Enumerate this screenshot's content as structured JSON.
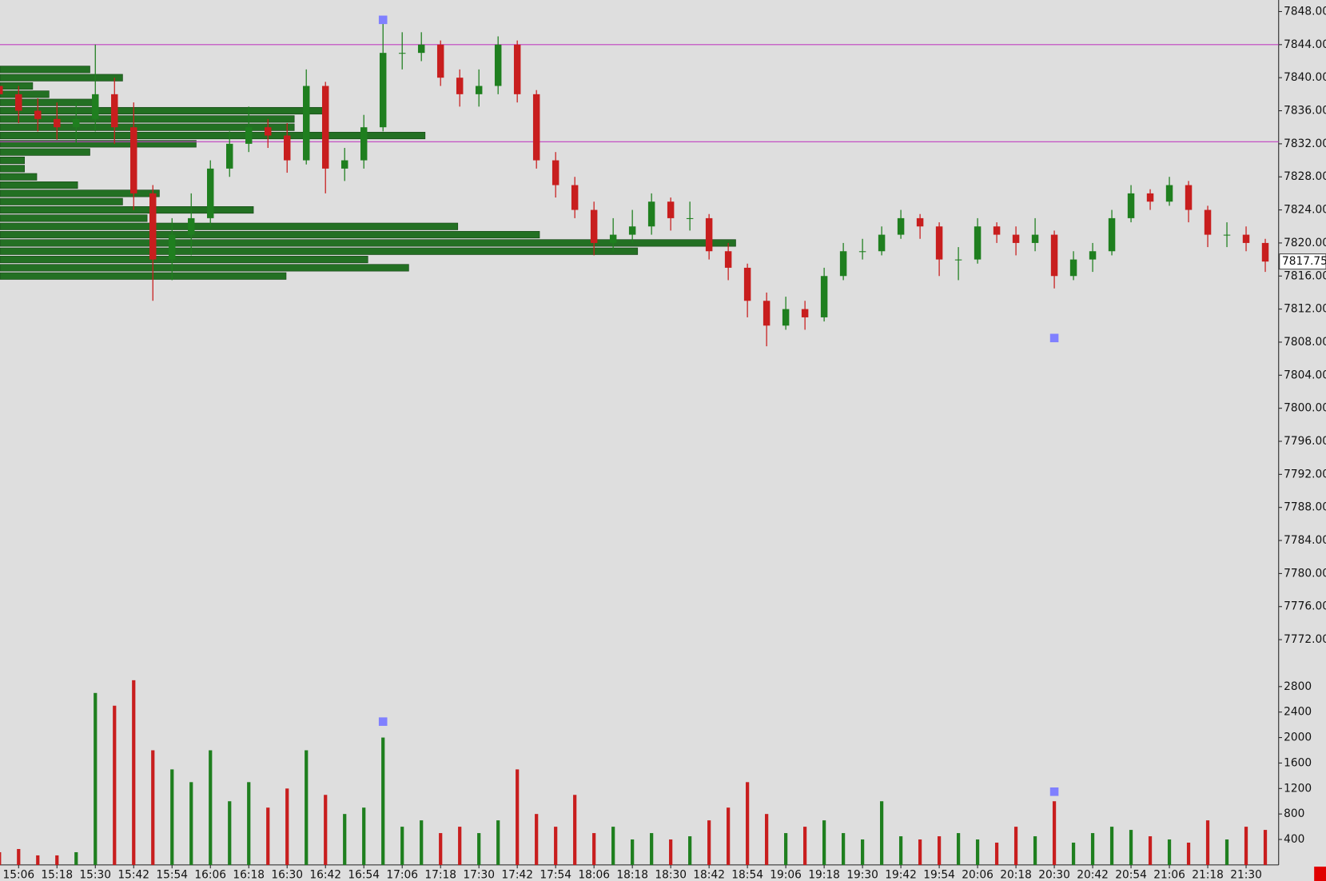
{
  "chart_data": {
    "type": "candlestick",
    "x": [
      "15:00",
      "15:06",
      "15:12",
      "15:18",
      "15:24",
      "15:30",
      "15:36",
      "15:42",
      "15:48",
      "15:54",
      "16:00",
      "16:06",
      "16:12",
      "16:18",
      "16:24",
      "16:30",
      "16:36",
      "16:42",
      "16:48",
      "16:54",
      "17:00",
      "17:06",
      "17:12",
      "17:18",
      "17:24",
      "17:30",
      "17:36",
      "17:42",
      "17:48",
      "17:54",
      "18:00",
      "18:06",
      "18:12",
      "18:18",
      "18:24",
      "18:30",
      "18:36",
      "18:42",
      "18:48",
      "18:54",
      "19:00",
      "19:06",
      "19:12",
      "19:18",
      "19:24",
      "19:30",
      "19:36",
      "19:42",
      "19:48",
      "19:54",
      "20:00",
      "20:06",
      "20:12",
      "20:18",
      "20:24",
      "20:30",
      "20:36",
      "20:42",
      "20:48",
      "20:54",
      "21:00",
      "21:06",
      "21:12",
      "21:18",
      "21:24",
      "21:30",
      "21:36"
    ],
    "open": [
      7839,
      7838,
      7836,
      7835,
      7834,
      7835,
      7838,
      7834,
      7826,
      7818,
      7821,
      7823,
      7829,
      7832,
      7834,
      7833,
      7830,
      7839,
      7829,
      7830,
      7834,
      7843,
      7843,
      7844,
      7840,
      7838,
      7839,
      7844,
      7838,
      7830,
      7827,
      7824,
      7820,
      7821,
      7822,
      7825,
      7823,
      7823,
      7819,
      7817,
      7813,
      7810,
      7812,
      7811,
      7816,
      7819,
      7819,
      7821,
      7823,
      7822,
      7818,
      7818,
      7822,
      7821,
      7820,
      7821,
      7816,
      7818,
      7819,
      7823,
      7826,
      7825,
      7827,
      7824,
      7821,
      7821,
      7820
    ],
    "high": [
      7841,
      7839,
      7837.5,
      7837,
      7837,
      7844,
      7840,
      7837,
      7827,
      7823,
      7826,
      7830,
      7833.5,
      7836.5,
      7835,
      7834.5,
      7841,
      7839.5,
      7831.5,
      7835.5,
      7846.5,
      7845.5,
      7845.5,
      7844.5,
      7841,
      7841,
      7845,
      7844.5,
      7838.5,
      7831,
      7828,
      7825,
      7823,
      7824,
      7826,
      7825.5,
      7825,
      7823.5,
      7820,
      7817.5,
      7814,
      7813.5,
      7813,
      7817,
      7820,
      7820.5,
      7822,
      7824,
      7823.5,
      7822.5,
      7819.5,
      7823,
      7822.5,
      7822,
      7823,
      7821.5,
      7819,
      7820,
      7824,
      7827,
      7826.5,
      7828,
      7827.5,
      7824.5,
      7822.5,
      7822,
      7820.5
    ],
    "low": [
      7836.5,
      7834.5,
      7833.5,
      7832.5,
      7832,
      7833.5,
      7832,
      7824,
      7813,
      7815.5,
      7818.5,
      7822,
      7828,
      7831,
      7831.5,
      7828.5,
      7829.5,
      7826,
      7827.5,
      7829,
      7833.5,
      7841,
      7842,
      7839,
      7836.5,
      7836.5,
      7838,
      7837,
      7829,
      7825.5,
      7823,
      7818.5,
      7819,
      7820,
      7821,
      7821.5,
      7821.5,
      7818,
      7815.5,
      7811,
      7807.5,
      7809.5,
      7809.5,
      7810.5,
      7815.5,
      7818,
      7818.5,
      7820.5,
      7820.5,
      7816,
      7815.5,
      7817.5,
      7820,
      7818.5,
      7819,
      7814.5,
      7815.5,
      7816.5,
      7818.5,
      7822.5,
      7824,
      7824.5,
      7822.5,
      7819.5,
      7819.5,
      7819,
      7816.5
    ],
    "close": [
      7838,
      7836,
      7835,
      7834,
      7835,
      7838,
      7834,
      7826,
      7818,
      7821,
      7823,
      7829,
      7832,
      7834,
      7833,
      7830,
      7839,
      7829,
      7830,
      7834,
      7843,
      7843,
      7844,
      7840,
      7838,
      7839,
      7844,
      7838,
      7830,
      7827,
      7824,
      7820,
      7821,
      7822,
      7825,
      7823,
      7823,
      7819,
      7817,
      7813,
      7810,
      7812,
      7811,
      7816,
      7819,
      7819,
      7821,
      7823,
      7822,
      7818,
      7818,
      7822,
      7821,
      7820,
      7821,
      7816,
      7818,
      7819,
      7823,
      7826,
      7825,
      7827,
      7824,
      7821,
      7821,
      7820,
      7817.75
    ],
    "volume": [
      200,
      250,
      150,
      150,
      200,
      2700,
      2500,
      2900,
      1800,
      1500,
      1300,
      1800,
      1000,
      1300,
      900,
      1200,
      1800,
      1100,
      800,
      900,
      2000,
      600,
      700,
      500,
      600,
      500,
      700,
      1500,
      800,
      600,
      1100,
      500,
      600,
      400,
      500,
      400,
      450,
      700,
      900,
      1300,
      800,
      500,
      600,
      700,
      500,
      400,
      1000,
      450,
      400,
      450,
      500,
      400,
      350,
      600,
      450,
      1000,
      350,
      500,
      600,
      550,
      450,
      400,
      350,
      700,
      400,
      600,
      550
    ],
    "up_color": "#1f7f1f",
    "down_color": "#c81e1e",
    "ylim": [
      7769.6,
      7849.4
    ],
    "yticks": [
      {
        "value": 7848,
        "label": "7848.00"
      },
      {
        "value": 7844,
        "label": "7844.00"
      },
      {
        "value": 7840,
        "label": "7840.00"
      },
      {
        "value": 7836,
        "label": "7836.00"
      },
      {
        "value": 7832,
        "label": "7832.00"
      },
      {
        "value": 7828,
        "label": "7828.00"
      },
      {
        "value": 7824,
        "label": "7824.00"
      },
      {
        "value": 7820,
        "label": "7820.00"
      },
      {
        "value": 7816,
        "label": "7816.00"
      },
      {
        "value": 7812,
        "label": "7812.00"
      },
      {
        "value": 7808,
        "label": "7808.00"
      },
      {
        "value": 7804,
        "label": "7804.00"
      },
      {
        "value": 7800,
        "label": "7800.00"
      },
      {
        "value": 7796,
        "label": "7796.00"
      },
      {
        "value": 7792,
        "label": "7792.00"
      },
      {
        "value": 7788,
        "label": "7788.00"
      },
      {
        "value": 7784,
        "label": "7784.00"
      },
      {
        "value": 7780,
        "label": "7780.00"
      },
      {
        "value": 7776,
        "label": "7776.00"
      },
      {
        "value": 7772,
        "label": "7772.00"
      }
    ],
    "volume_ylim": [
      0,
      3000
    ],
    "volume_yticks": [
      400,
      800,
      1200,
      1600,
      2000,
      2400,
      2800
    ],
    "xticks": [
      "15:06",
      "15:18",
      "15:30",
      "15:42",
      "15:54",
      "16:06",
      "16:18",
      "16:30",
      "16:42",
      "16:54",
      "17:06",
      "17:18",
      "17:30",
      "17:42",
      "17:54",
      "18:06",
      "18:18",
      "18:30",
      "18:42",
      "18:54",
      "19:06",
      "19:18",
      "19:30",
      "19:42",
      "19:54",
      "20:06",
      "20:18",
      "20:30",
      "20:42",
      "20:54",
      "21:06",
      "21:18",
      "21:30"
    ],
    "levels": [
      7844,
      7832.25
    ],
    "level_color": "#c040c0",
    "volume_profile": {
      "color": "#1a6b1a",
      "prices": [
        7841,
        7840,
        7839,
        7838,
        7837,
        7836,
        7835,
        7834,
        7833,
        7832,
        7831,
        7830,
        7829,
        7828,
        7827,
        7826,
        7825,
        7824,
        7823,
        7822,
        7821,
        7820,
        7819,
        7818,
        7817,
        7816
      ],
      "values": [
        1100,
        1500,
        400,
        600,
        1200,
        4000,
        3600,
        3600,
        5200,
        2400,
        1100,
        300,
        300,
        450,
        950,
        1950,
        1500,
        3100,
        1800,
        5600,
        6600,
        9000,
        7800,
        4500,
        5000,
        3500
      ]
    },
    "signals": {
      "color": "#8080ff",
      "x": [
        "17:00",
        "20:30"
      ],
      "prices": [
        7847,
        7808.5
      ],
      "volumes": [
        2250,
        1150
      ]
    }
  }
}
